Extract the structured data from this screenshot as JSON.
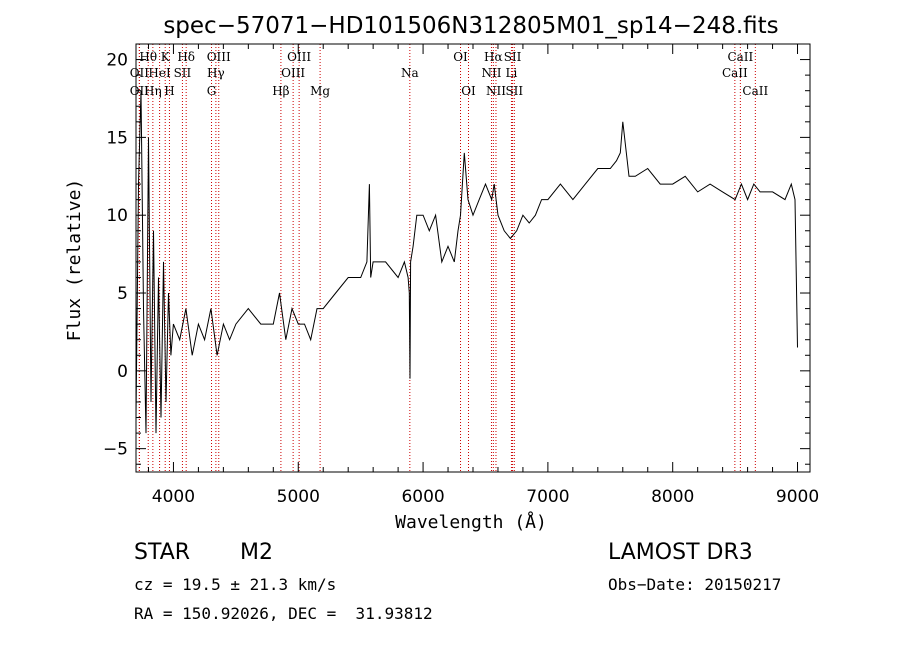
{
  "chart_data": {
    "type": "line",
    "title": "spec−57071−HD101506N312805M01_sp14−248.fits",
    "xlabel": "Wavelength (Å)",
    "ylabel": "Flux (relative)",
    "xlim": [
      3700,
      9100
    ],
    "ylim": [
      -6.5,
      21
    ],
    "x_ticks": [
      4000,
      5000,
      6000,
      7000,
      8000,
      9000
    ],
    "y_ticks": [
      -5,
      0,
      5,
      10,
      15,
      20
    ],
    "grid": false,
    "series": [
      {
        "name": "flux",
        "color": "#000000",
        "x": [
          3700,
          3720,
          3740,
          3760,
          3780,
          3800,
          3820,
          3840,
          3860,
          3880,
          3900,
          3920,
          3940,
          3960,
          3980,
          4000,
          4050,
          4100,
          4150,
          4200,
          4250,
          4300,
          4350,
          4400,
          4450,
          4500,
          4600,
          4700,
          4800,
          4850,
          4900,
          4950,
          5000,
          5050,
          5100,
          5150,
          5200,
          5300,
          5400,
          5500,
          5550,
          5570,
          5580,
          5600,
          5700,
          5800,
          5850,
          5880,
          5890,
          5895,
          5900,
          5920,
          5950,
          6000,
          6050,
          6100,
          6150,
          6200,
          6250,
          6280,
          6300,
          6330,
          6360,
          6400,
          6450,
          6500,
          6550,
          6570,
          6600,
          6650,
          6700,
          6750,
          6800,
          6850,
          6900,
          6950,
          7000,
          7100,
          7200,
          7300,
          7400,
          7500,
          7550,
          7580,
          7600,
          7650,
          7700,
          7800,
          7900,
          8000,
          8100,
          8200,
          8300,
          8400,
          8500,
          8550,
          8600,
          8650,
          8700,
          8800,
          8900,
          8950,
          8980,
          9000
        ],
        "values": [
          -3,
          12,
          18,
          4,
          -4,
          15,
          -2,
          9,
          -4,
          6,
          -3,
          7,
          -2,
          5,
          1,
          3,
          2,
          4,
          1,
          3,
          2,
          4,
          1,
          3,
          2,
          3,
          4,
          3,
          3,
          5,
          2,
          4,
          3,
          3,
          2,
          4,
          4,
          5,
          6,
          6,
          7,
          12,
          6,
          7,
          7,
          6,
          7,
          6,
          5,
          -0.5,
          7,
          8,
          10,
          10,
          9,
          10,
          7,
          8,
          7,
          9,
          10,
          14,
          11,
          10,
          11,
          12,
          11,
          12,
          10,
          9,
          8.5,
          9,
          10,
          9.5,
          10,
          11,
          11,
          12,
          11,
          12,
          13,
          13,
          13.5,
          14,
          16,
          12.5,
          12.5,
          13,
          12,
          12,
          12.5,
          11.5,
          12,
          11.5,
          11,
          12,
          11,
          12,
          11.5,
          11.5,
          11,
          12,
          11,
          1.5
        ]
      }
    ],
    "emission_lines": [
      {
        "label": "OII",
        "wavelength": 3727,
        "row": 2
      },
      {
        "label": "OII",
        "wavelength": 3727,
        "row": 3
      },
      {
        "label": "Hθ",
        "wavelength": 3798,
        "row": 1
      },
      {
        "label": "Hη",
        "wavelength": 3835,
        "row": 3
      },
      {
        "label": "HeI",
        "wavelength": 3889,
        "row": 2
      },
      {
        "label": "K",
        "wavelength": 3934,
        "row": 1
      },
      {
        "label": "H",
        "wavelength": 3968,
        "row": 3
      },
      {
        "label": "SII",
        "wavelength": 4072,
        "row": 2
      },
      {
        "label": "Hδ",
        "wavelength": 4102,
        "row": 1
      },
      {
        "label": "OIII",
        "wavelength": 4363,
        "row": 1
      },
      {
        "label": "Hγ",
        "wavelength": 4340,
        "row": 2
      },
      {
        "label": "G",
        "wavelength": 4305,
        "row": 3
      },
      {
        "label": "Hβ",
        "wavelength": 4861,
        "row": 3
      },
      {
        "label": "OIII",
        "wavelength": 4959,
        "row": 2
      },
      {
        "label": "OIII",
        "wavelength": 5007,
        "row": 1
      },
      {
        "label": "Mg",
        "wavelength": 5175,
        "row": 3
      },
      {
        "label": "Na",
        "wavelength": 5894,
        "row": 2
      },
      {
        "label": "OI",
        "wavelength": 6300,
        "row": 1
      },
      {
        "label": "OI",
        "wavelength": 6364,
        "row": 3
      },
      {
        "label": "NII",
        "wavelength": 6548,
        "row": 2
      },
      {
        "label": "Hα",
        "wavelength": 6563,
        "row": 1
      },
      {
        "label": "NII",
        "wavelength": 6584,
        "row": 3
      },
      {
        "label": "SII",
        "wavelength": 6717,
        "row": 1
      },
      {
        "label": "Li",
        "wavelength": 6708,
        "row": 2
      },
      {
        "label": "SII",
        "wavelength": 6731,
        "row": 3
      },
      {
        "label": "CaII",
        "wavelength": 8498,
        "row": 2
      },
      {
        "label": "CaII",
        "wavelength": 8542,
        "row": 1
      },
      {
        "label": "CaII",
        "wavelength": 8662,
        "row": 3
      }
    ],
    "line_marker_color": "#cc0000"
  },
  "info": {
    "object_class": "STAR",
    "subclass": "M2",
    "survey": "LAMOST DR3",
    "redshift_text": "cz = 19.5 ± 21.3 km/s",
    "obs_date_text": "Obs−Date: 20150217",
    "coords_text": "RA = 150.92026, DEC =  31.93812"
  }
}
